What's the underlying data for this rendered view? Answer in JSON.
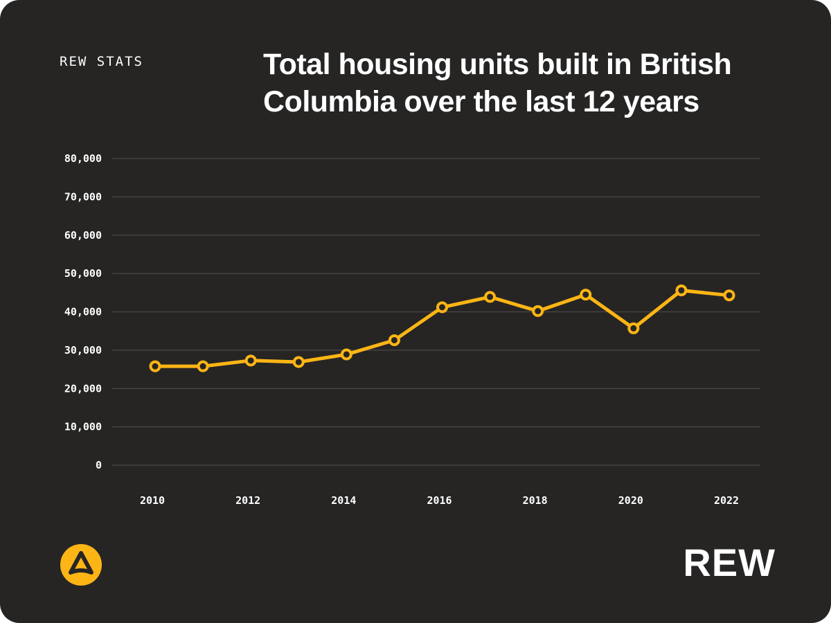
{
  "header": {
    "brand_label": "REW STATS",
    "title": "Total housing units built in British Columbia over the last 12 years"
  },
  "footer": {
    "logo_icon": "rew-triangle-logo-icon",
    "logo_text": "REW"
  },
  "colors": {
    "background": "#262524",
    "line": "#FDB515",
    "grid": "#4a4948",
    "text": "#ffffff"
  },
  "chart_data": {
    "type": "line",
    "title": "Total housing units built in British Columbia over the last 12 years",
    "xlabel": "",
    "ylabel": "",
    "x": [
      2010,
      2011,
      2012,
      2013,
      2014,
      2015,
      2016,
      2017,
      2018,
      2019,
      2020,
      2021,
      2022
    ],
    "x_tick_labels": [
      "2010",
      "2012",
      "2014",
      "2016",
      "2018",
      "2020",
      "2022"
    ],
    "y_tick_labels": [
      "0",
      "10,000",
      "20,000",
      "30,000",
      "40,000",
      "50,000",
      "60,000",
      "70,000",
      "80,000"
    ],
    "ylim": [
      0,
      80000
    ],
    "grid": true,
    "legend": "none",
    "series": [
      {
        "values": [
          25800,
          25800,
          27300,
          26900,
          28900,
          32600,
          41200,
          43900,
          40200,
          44500,
          35700,
          45600,
          44300
        ]
      }
    ]
  }
}
